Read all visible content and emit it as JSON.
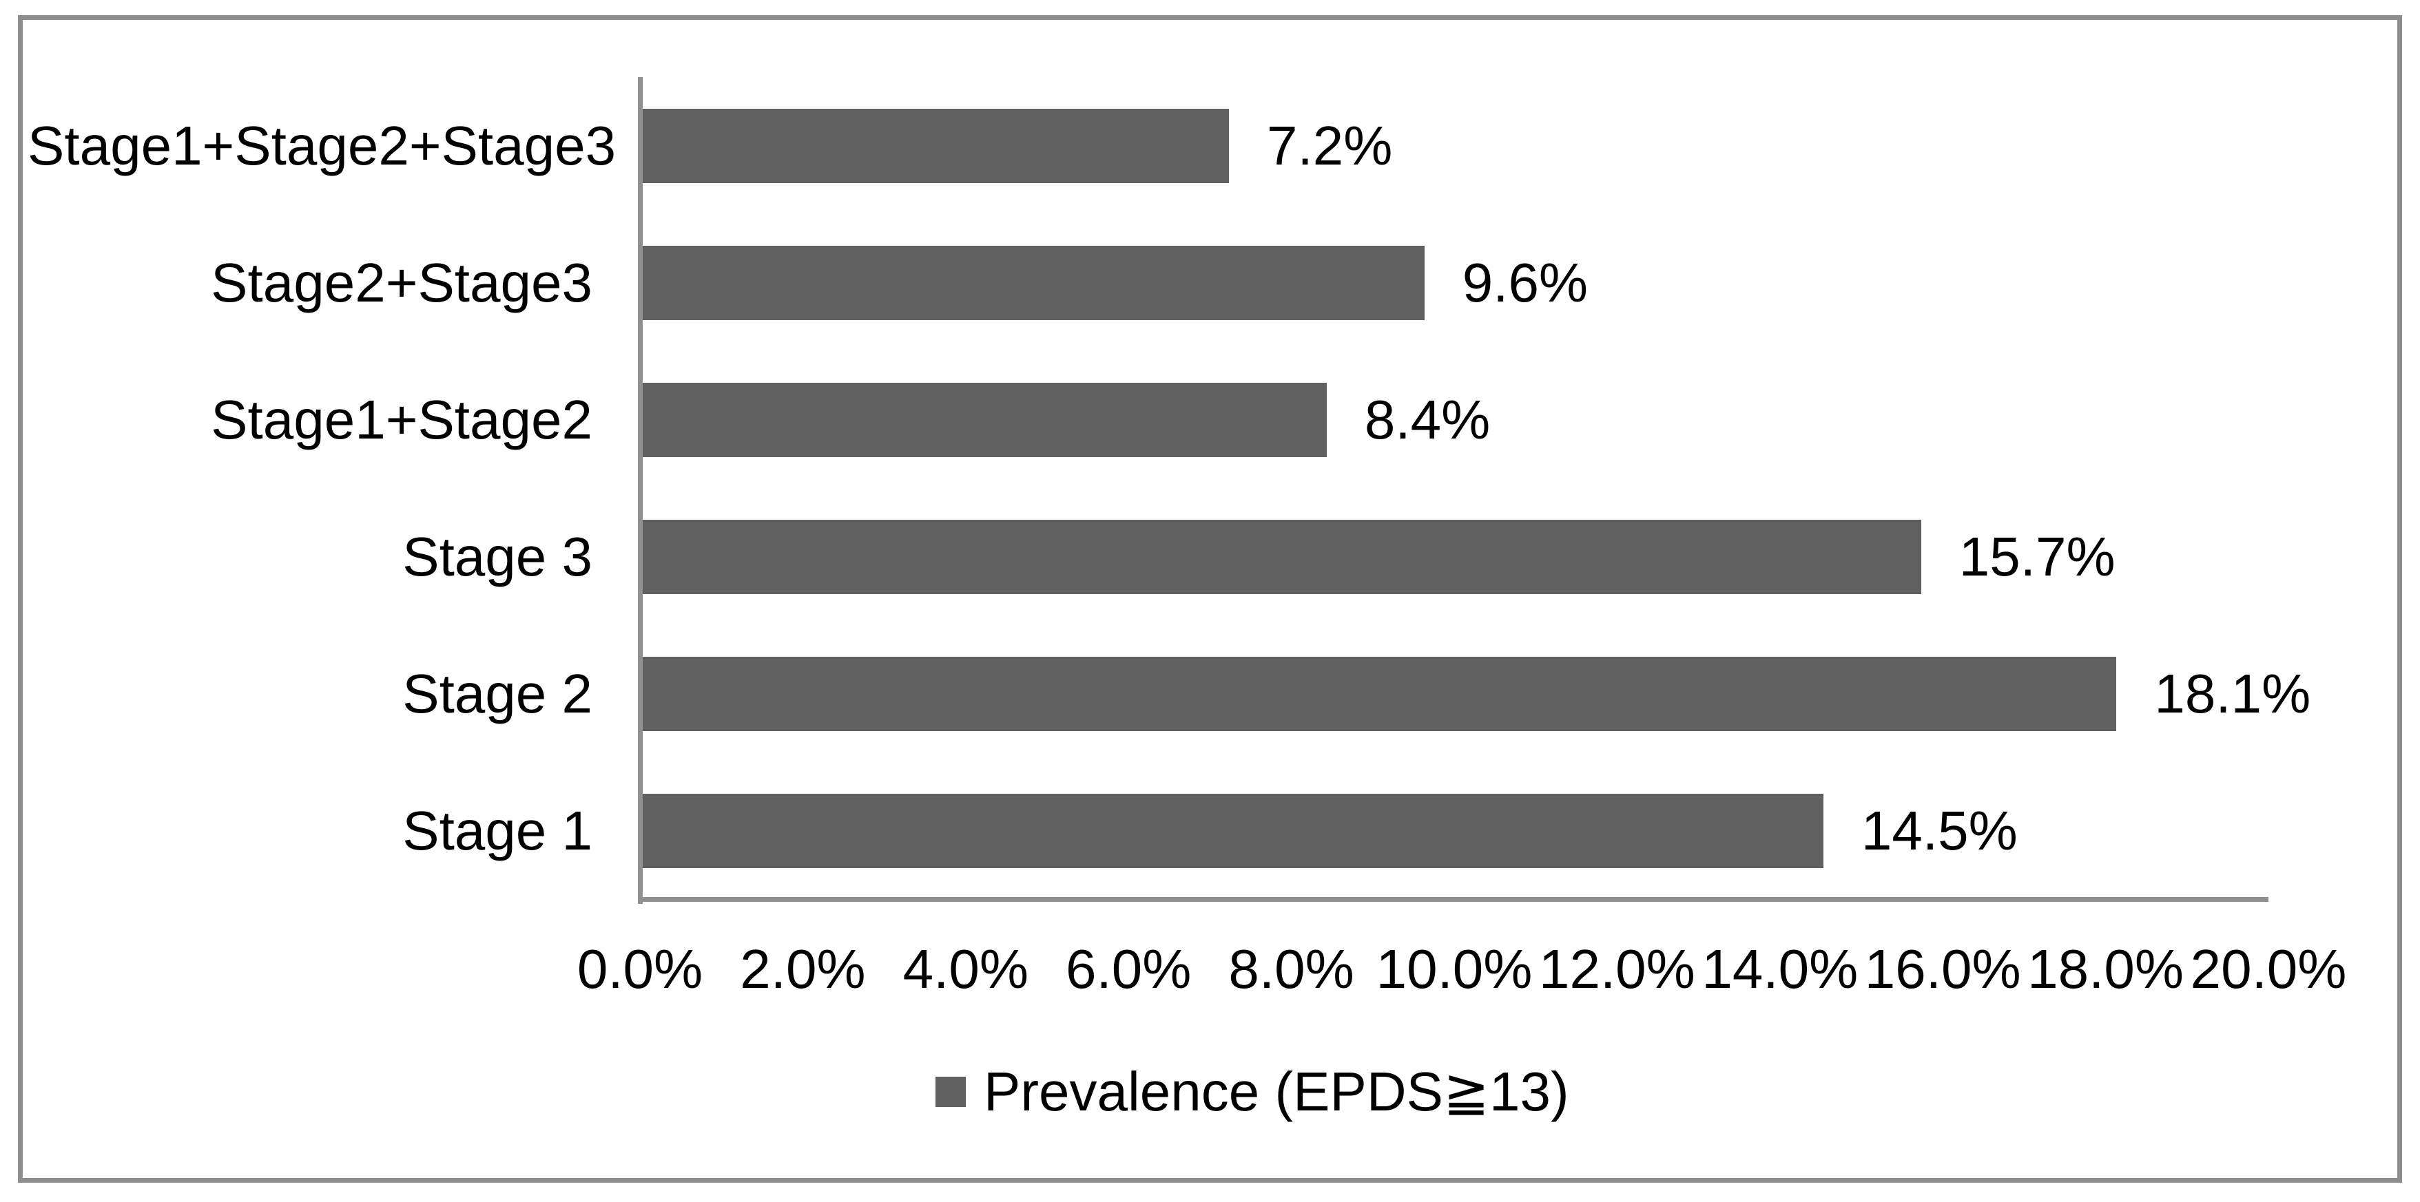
{
  "chart_data": {
    "type": "bar",
    "orientation": "horizontal",
    "title": "",
    "categories": [
      "Stage1+Stage2+Stage3",
      "Stage2+Stage3",
      "Stage1+Stage2",
      "Stage 3",
      "Stage 2",
      "Stage 1"
    ],
    "series": [
      {
        "name": "Prevalence (EPDS≧13)",
        "values": [
          7.2,
          9.6,
          8.4,
          15.7,
          18.1,
          14.5
        ]
      }
    ],
    "data_labels": [
      "7.2%",
      "9.6%",
      "8.4%",
      "15.7%",
      "18.1%",
      "14.5%"
    ],
    "x_axis": {
      "min": 0,
      "max": 20,
      "step": 2,
      "ticks": [
        "0.0%",
        "2.0%",
        "4.0%",
        "6.0%",
        "8.0%",
        "10.0%",
        "12.0%",
        "14.0%",
        "16.0%",
        "18.0%",
        "20.0%"
      ]
    },
    "y_axis": {
      "label": ""
    },
    "legend": {
      "label": "Prevalence (EPDS≧13)",
      "position": "bottom",
      "marker": "square-icon"
    },
    "layout": {
      "grid": false,
      "bar_color_applies_to_all": true
    },
    "colors": {
      "bar": "#606060",
      "axis": "#909090",
      "frame": "#8e8e8e",
      "text": "#000000",
      "background": "#ffffff"
    }
  }
}
